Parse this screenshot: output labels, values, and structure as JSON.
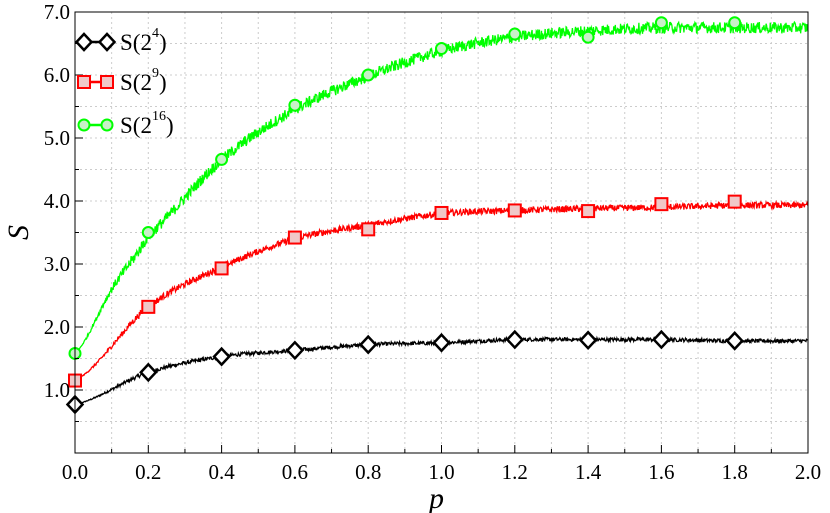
{
  "chart_data": {
    "type": "line",
    "title": "",
    "xlabel": "p",
    "ylabel": "S",
    "xlim": [
      0,
      2
    ],
    "ylim": [
      0,
      7
    ],
    "grid": true,
    "legend_position": "top-left",
    "x_ticks": [
      "0.0",
      "0.2",
      "0.4",
      "0.6",
      "0.8",
      "1.0",
      "1.2",
      "1.4",
      "1.6",
      "1.8",
      "2.0"
    ],
    "y_ticks": [
      "1.0",
      "2.0",
      "3.0",
      "4.0",
      "5.0",
      "6.0",
      "7.0"
    ],
    "series": [
      {
        "name": "S(2^4)",
        "legend_base": "S(2",
        "legend_exp": "4",
        "legend_close": ")",
        "color": "#000000",
        "marker": "diamond",
        "marker_fill": "#ffffff",
        "noise": 0.03,
        "x": [
          0.0,
          0.2,
          0.4,
          0.6,
          0.8,
          1.0,
          1.2,
          1.4,
          1.6,
          1.8,
          2.0
        ],
        "y": [
          0.77,
          1.28,
          1.53,
          1.63,
          1.72,
          1.75,
          1.8,
          1.8,
          1.8,
          1.78,
          1.78
        ],
        "marker_x": [
          0.0,
          0.2,
          0.4,
          0.6,
          0.8,
          1.0,
          1.2,
          1.4,
          1.6,
          1.8
        ],
        "marker_y": [
          0.77,
          1.28,
          1.53,
          1.63,
          1.72,
          1.75,
          1.8,
          1.79,
          1.8,
          1.78
        ]
      },
      {
        "name": "S(2^9)",
        "legend_base": "S(2",
        "legend_exp": "9",
        "legend_close": ")",
        "color": "#ff0000",
        "marker": "square",
        "marker_fill": "#f0c8c8",
        "noise": 0.05,
        "x": [
          0.0,
          0.2,
          0.4,
          0.6,
          0.8,
          1.0,
          1.2,
          1.4,
          1.6,
          1.8,
          2.0
        ],
        "y": [
          1.15,
          2.32,
          2.95,
          3.4,
          3.62,
          3.8,
          3.85,
          3.88,
          3.9,
          3.93,
          3.93
        ],
        "marker_x": [
          0.0,
          0.2,
          0.4,
          0.6,
          0.8,
          1.0,
          1.2,
          1.4,
          1.6,
          1.8
        ],
        "marker_y": [
          1.15,
          2.32,
          2.93,
          3.42,
          3.55,
          3.81,
          3.85,
          3.84,
          3.95,
          3.99
        ]
      },
      {
        "name": "S(2^16)",
        "legend_base": "S(2",
        "legend_exp": "16",
        "legend_close": ")",
        "color": "#00ff00",
        "marker": "circle",
        "marker_fill": "#c8f0c8",
        "noise": 0.09,
        "x": [
          0.0,
          0.1,
          0.2,
          0.4,
          0.6,
          0.8,
          1.0,
          1.2,
          1.4,
          1.6,
          1.8,
          2.0
        ],
        "y": [
          1.58,
          2.6,
          3.45,
          4.65,
          5.45,
          5.98,
          6.38,
          6.6,
          6.7,
          6.75,
          6.75,
          6.75
        ],
        "marker_x": [
          0.0,
          0.2,
          0.4,
          0.6,
          0.8,
          1.0,
          1.2,
          1.4,
          1.6,
          1.8
        ],
        "marker_y": [
          1.58,
          3.5,
          4.66,
          5.52,
          6.0,
          6.42,
          6.65,
          6.6,
          6.83,
          6.83
        ]
      }
    ]
  }
}
